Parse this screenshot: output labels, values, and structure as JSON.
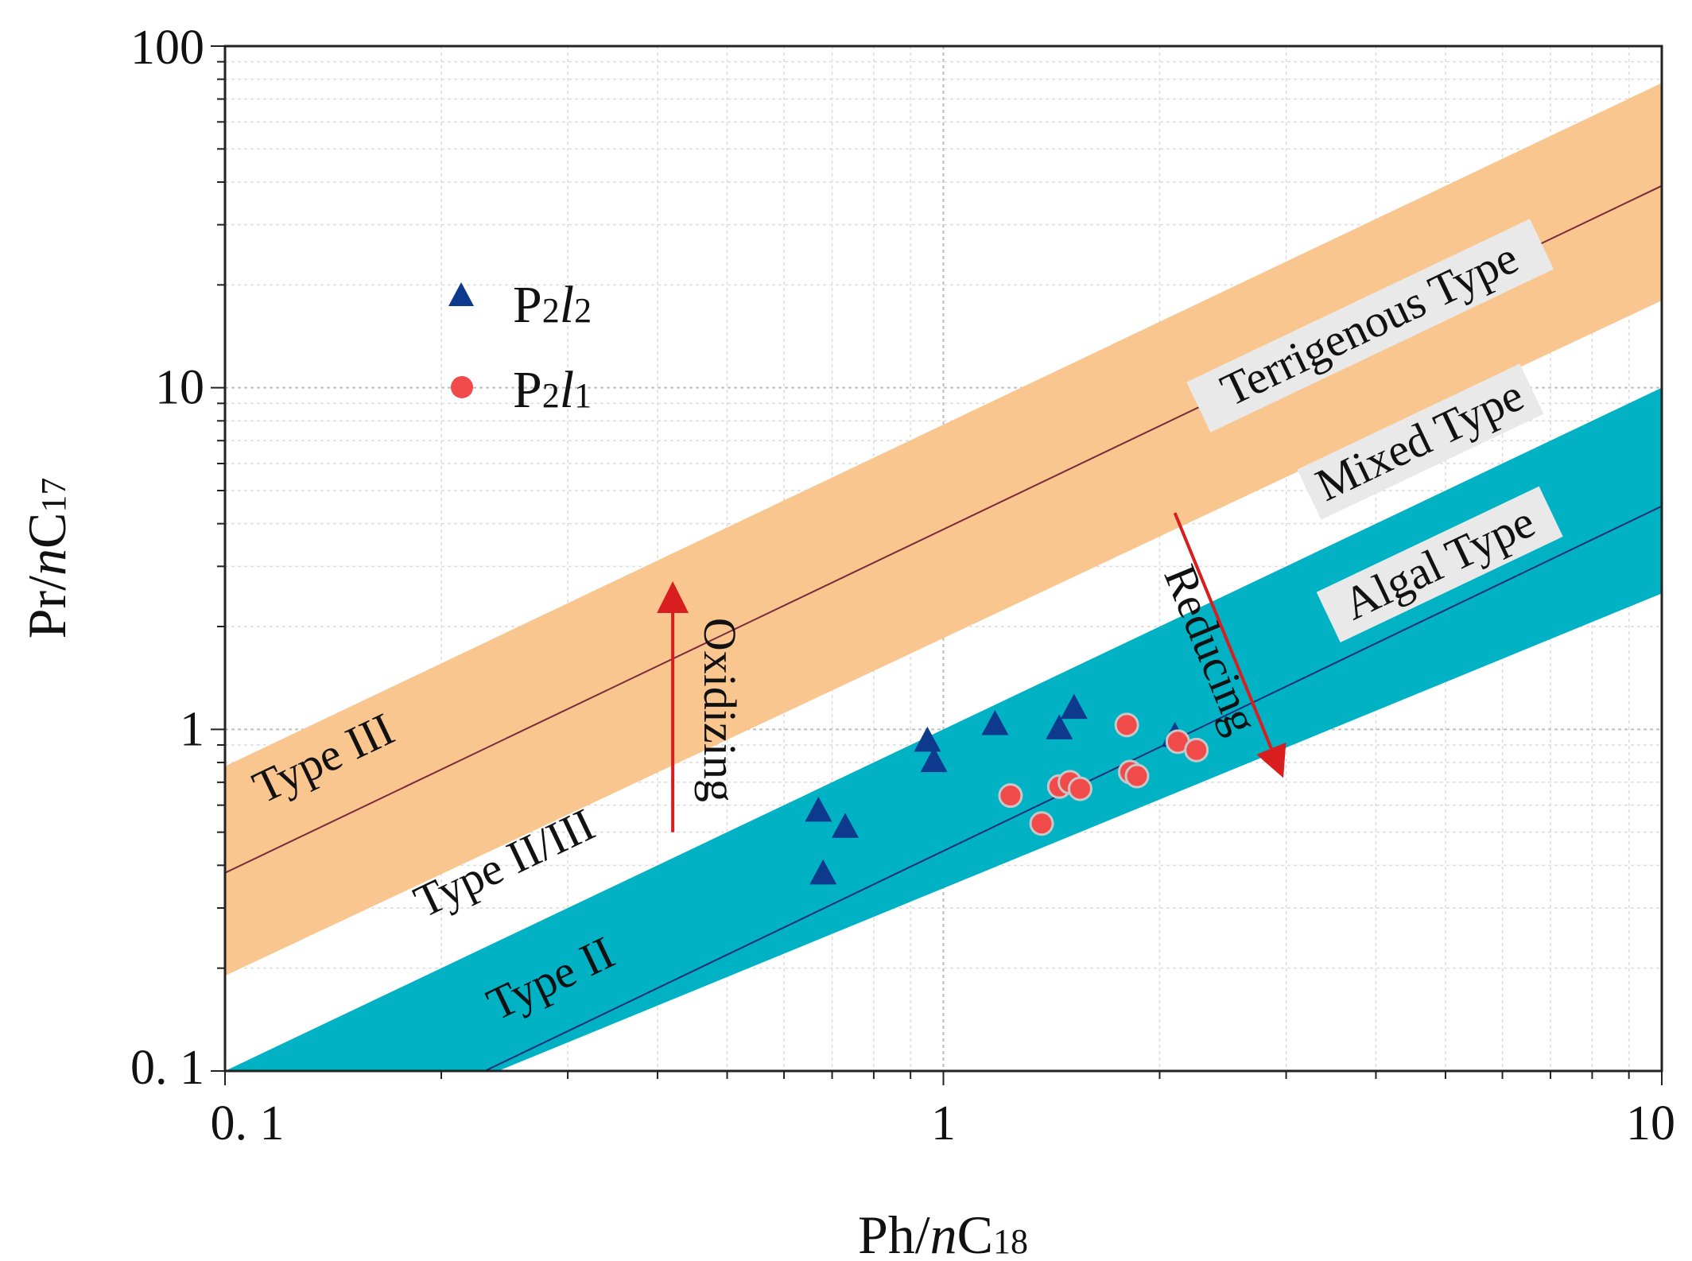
{
  "chart_data": {
    "type": "scatter",
    "xscale": "log",
    "yscale": "log",
    "xlim": [
      0.1,
      10
    ],
    "ylim": [
      0.1,
      100
    ],
    "xlabel": {
      "main": "Ph/",
      "italic": "n",
      "tail": "C",
      "sub": "18"
    },
    "ylabel": {
      "main": "Pr/",
      "italic": "n",
      "tail": "C",
      "sub": "17"
    },
    "x_ticks": [
      {
        "value": 0.1,
        "label": "0. 1"
      },
      {
        "value": 1,
        "label": "1"
      },
      {
        "value": 10,
        "label": "10"
      }
    ],
    "y_ticks": [
      {
        "value": 0.1,
        "label": "0. 1"
      },
      {
        "value": 1,
        "label": "1"
      },
      {
        "value": 10,
        "label": "10"
      },
      {
        "value": 100,
        "label": "100"
      }
    ],
    "grid": true,
    "bands": [
      {
        "name": "terrigenous-band",
        "color": "#FAC68F",
        "at_x": [
          [
            0.1,
            0.19
          ],
          [
            10,
            78
          ]
        ]
      },
      {
        "name": "algal-band",
        "color": "#00B2C3",
        "at_x": [
          [
            0.1,
            0.1
          ],
          [
            10,
            10
          ]
        ],
        "lower_at_x": [
          [
            0.24,
            0.1
          ],
          [
            10,
            2.5
          ]
        ]
      }
    ],
    "reference_lines": [
      {
        "name": "type-iii-line",
        "color": "#7a2a3a",
        "points": [
          [
            0.1,
            0.38
          ],
          [
            10,
            39
          ]
        ]
      },
      {
        "name": "type-ii-line",
        "color": "#1b2e7a",
        "points": [
          [
            0.23,
            0.1
          ],
          [
            10,
            4.5
          ]
        ]
      }
    ],
    "region_labels": [
      {
        "text": "Type III",
        "x": 0.14,
        "y": 0.75
      },
      {
        "text": "Type II/III",
        "x": 0.25,
        "y": 0.37
      },
      {
        "text": "Type II",
        "x": 0.29,
        "y": 0.17
      },
      {
        "text": "Terrigenous Type",
        "x": 4.0,
        "y": 14
      },
      {
        "text": "Mixed Type",
        "x": 4.7,
        "y": 6.4
      },
      {
        "text": "Algal Type",
        "x": 5.0,
        "y": 2.8
      }
    ],
    "arrows": [
      {
        "name": "oxidizing-arrow",
        "label": "Oxidizing",
        "from": [
          0.42,
          0.5
        ],
        "to": [
          0.42,
          2.6
        ],
        "color": "#d81e1e"
      },
      {
        "name": "reducing-arrow",
        "label": "Reducing",
        "from": [
          2.1,
          4.3
        ],
        "to": [
          2.95,
          0.75
        ],
        "color": "#d81e1e"
      }
    ],
    "legend": {
      "position": "upper-left",
      "entries": [
        {
          "label": "P2l2",
          "p": "P",
          "sub1": "2",
          "l": "l",
          "sub2": "2",
          "marker": "triangle",
          "color": "#0d3a8c"
        },
        {
          "label": "P2l1",
          "p": "P",
          "sub1": "2",
          "l": "l",
          "sub2": "1",
          "marker": "circle",
          "color": "#f04a4a"
        }
      ]
    },
    "series": [
      {
        "name": "P2l2",
        "marker": "triangle",
        "color": "#0d3a8c",
        "points": [
          [
            0.67,
            0.58
          ],
          [
            0.73,
            0.52
          ],
          [
            0.68,
            0.38
          ],
          [
            0.95,
            0.93
          ],
          [
            0.97,
            0.81
          ],
          [
            1.18,
            1.04
          ],
          [
            1.45,
            1.01
          ],
          [
            1.52,
            1.16
          ],
          [
            2.1,
            0.96
          ]
        ]
      },
      {
        "name": "P2l1",
        "marker": "circle",
        "color": "#f04a4a",
        "points": [
          [
            1.24,
            0.64
          ],
          [
            1.37,
            0.53
          ],
          [
            1.45,
            0.68
          ],
          [
            1.5,
            0.7
          ],
          [
            1.55,
            0.67
          ],
          [
            1.8,
            1.03
          ],
          [
            1.82,
            0.75
          ],
          [
            1.86,
            0.73
          ],
          [
            2.12,
            0.92
          ],
          [
            2.25,
            0.87
          ]
        ]
      }
    ]
  }
}
